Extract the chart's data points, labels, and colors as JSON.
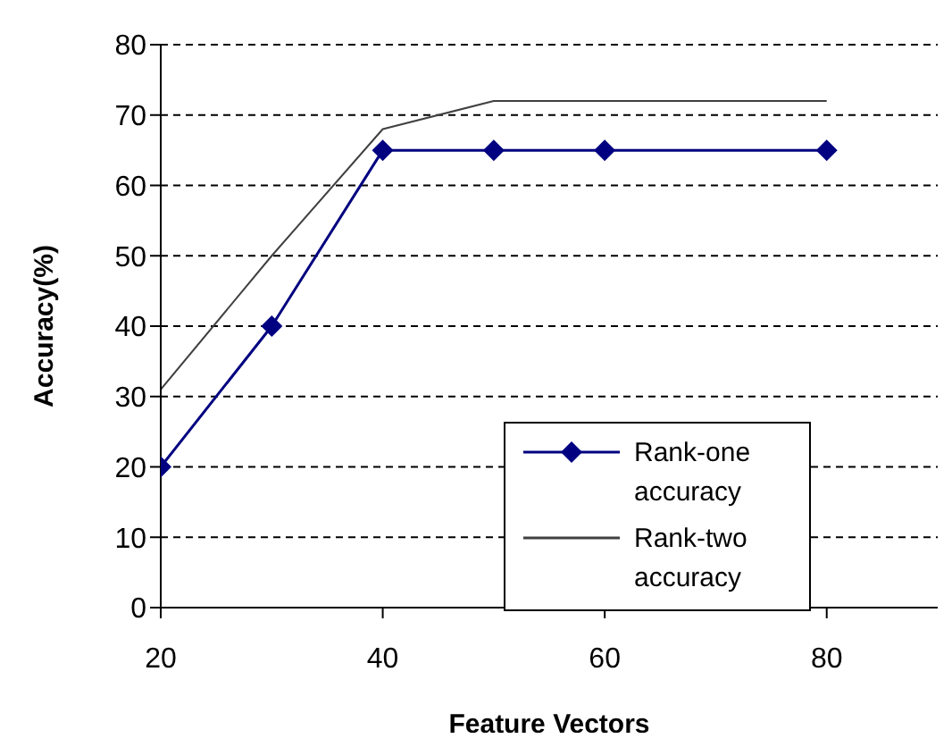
{
  "chart_data": {
    "type": "line",
    "xlabel": "Feature Vectors",
    "ylabel": "Accuracy(%)",
    "x": [
      20,
      30,
      40,
      50,
      60,
      80
    ],
    "series": [
      {
        "name": "Rank-one accuracy",
        "color": "#000080",
        "values": [
          20,
          40,
          65,
          65,
          65,
          65
        ],
        "marker": "diamond"
      },
      {
        "name": "Rank-two accuracy",
        "color": "#404040",
        "values": [
          31,
          50,
          68,
          72,
          72,
          72
        ],
        "marker": "none"
      }
    ],
    "xlim": [
      20,
      90
    ],
    "xticks": [
      20,
      40,
      60,
      80
    ],
    "ylim": [
      0,
      80
    ],
    "yticks": [
      0,
      10,
      20,
      30,
      40,
      50,
      60,
      70,
      80
    ],
    "grid": "y",
    "legend": "bottom right",
    "line_style": "solid"
  }
}
